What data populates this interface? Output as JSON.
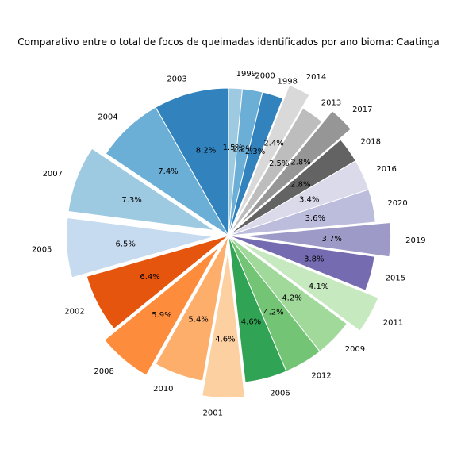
{
  "chart_data": {
    "type": "pie",
    "title": "Comparativo entre o total de focos de queimadas identificados por ano bioma: Caatinga",
    "start_angle_deg": 90,
    "direction": "clockwise",
    "slices": [
      {
        "label": "1999",
        "pct_label": "1.5%",
        "value": 1.5,
        "color": "#9ecae1",
        "explode": false
      },
      {
        "label": "2000",
        "pct_label": "2.2%",
        "value": 2.2,
        "color": "#6baed6",
        "explode": false
      },
      {
        "label": "1998",
        "pct_label": "2.3%",
        "value": 2.3,
        "color": "#3182bd",
        "explode": false
      },
      {
        "label": "2014",
        "pct_label": "2.4%",
        "value": 2.4,
        "color": "#d9d9d9",
        "explode": true
      },
      {
        "label": "2013",
        "pct_label": "2.5%",
        "value": 2.5,
        "color": "#bdbdbd",
        "explode": false
      },
      {
        "label": "2017",
        "pct_label": "2.8%",
        "value": 2.8,
        "color": "#969696",
        "explode": true
      },
      {
        "label": "2018",
        "pct_label": "2.8%",
        "value": 2.8,
        "color": "#636363",
        "explode": false
      },
      {
        "label": "2016",
        "pct_label": "3.4%",
        "value": 3.4,
        "color": "#dadaeb",
        "explode": false
      },
      {
        "label": "2020",
        "pct_label": "3.6%",
        "value": 3.6,
        "color": "#bcbddc",
        "explode": false
      },
      {
        "label": "2019",
        "pct_label": "3.7%",
        "value": 3.7,
        "color": "#9e9ac8",
        "explode": true
      },
      {
        "label": "2015",
        "pct_label": "3.8%",
        "value": 3.8,
        "color": "#756bb1",
        "explode": false
      },
      {
        "label": "2011",
        "pct_label": "4.1%",
        "value": 4.1,
        "color": "#c7e9c0",
        "explode": true
      },
      {
        "label": "2009",
        "pct_label": "4.2%",
        "value": 4.2,
        "color": "#a1d99b",
        "explode": false
      },
      {
        "label": "2012",
        "pct_label": "4.2%",
        "value": 4.2,
        "color": "#74c476",
        "explode": false
      },
      {
        "label": "2006",
        "pct_label": "4.6%",
        "value": 4.6,
        "color": "#31a354",
        "explode": false
      },
      {
        "label": "2001",
        "pct_label": "4.6%",
        "value": 4.6,
        "color": "#fdd0a2",
        "explode": true
      },
      {
        "label": "2010",
        "pct_label": "5.4%",
        "value": 5.4,
        "color": "#fdae6b",
        "explode": false
      },
      {
        "label": "2008",
        "pct_label": "5.9%",
        "value": 5.9,
        "color": "#fd8d3c",
        "explode": true
      },
      {
        "label": "2002",
        "pct_label": "6.4%",
        "value": 6.4,
        "color": "#e6550d",
        "explode": false
      },
      {
        "label": "2005",
        "pct_label": "6.5%",
        "value": 6.5,
        "color": "#c6dbef",
        "explode": true
      },
      {
        "label": "2007",
        "pct_label": "7.3%",
        "value": 7.3,
        "color": "#9ecae1",
        "explode": true
      },
      {
        "label": "2004",
        "pct_label": "7.4%",
        "value": 7.4,
        "color": "#6baed6",
        "explode": false
      },
      {
        "label": "2003",
        "pct_label": "8.2%",
        "value": 8.2,
        "color": "#3182bd",
        "explode": false
      }
    ]
  }
}
